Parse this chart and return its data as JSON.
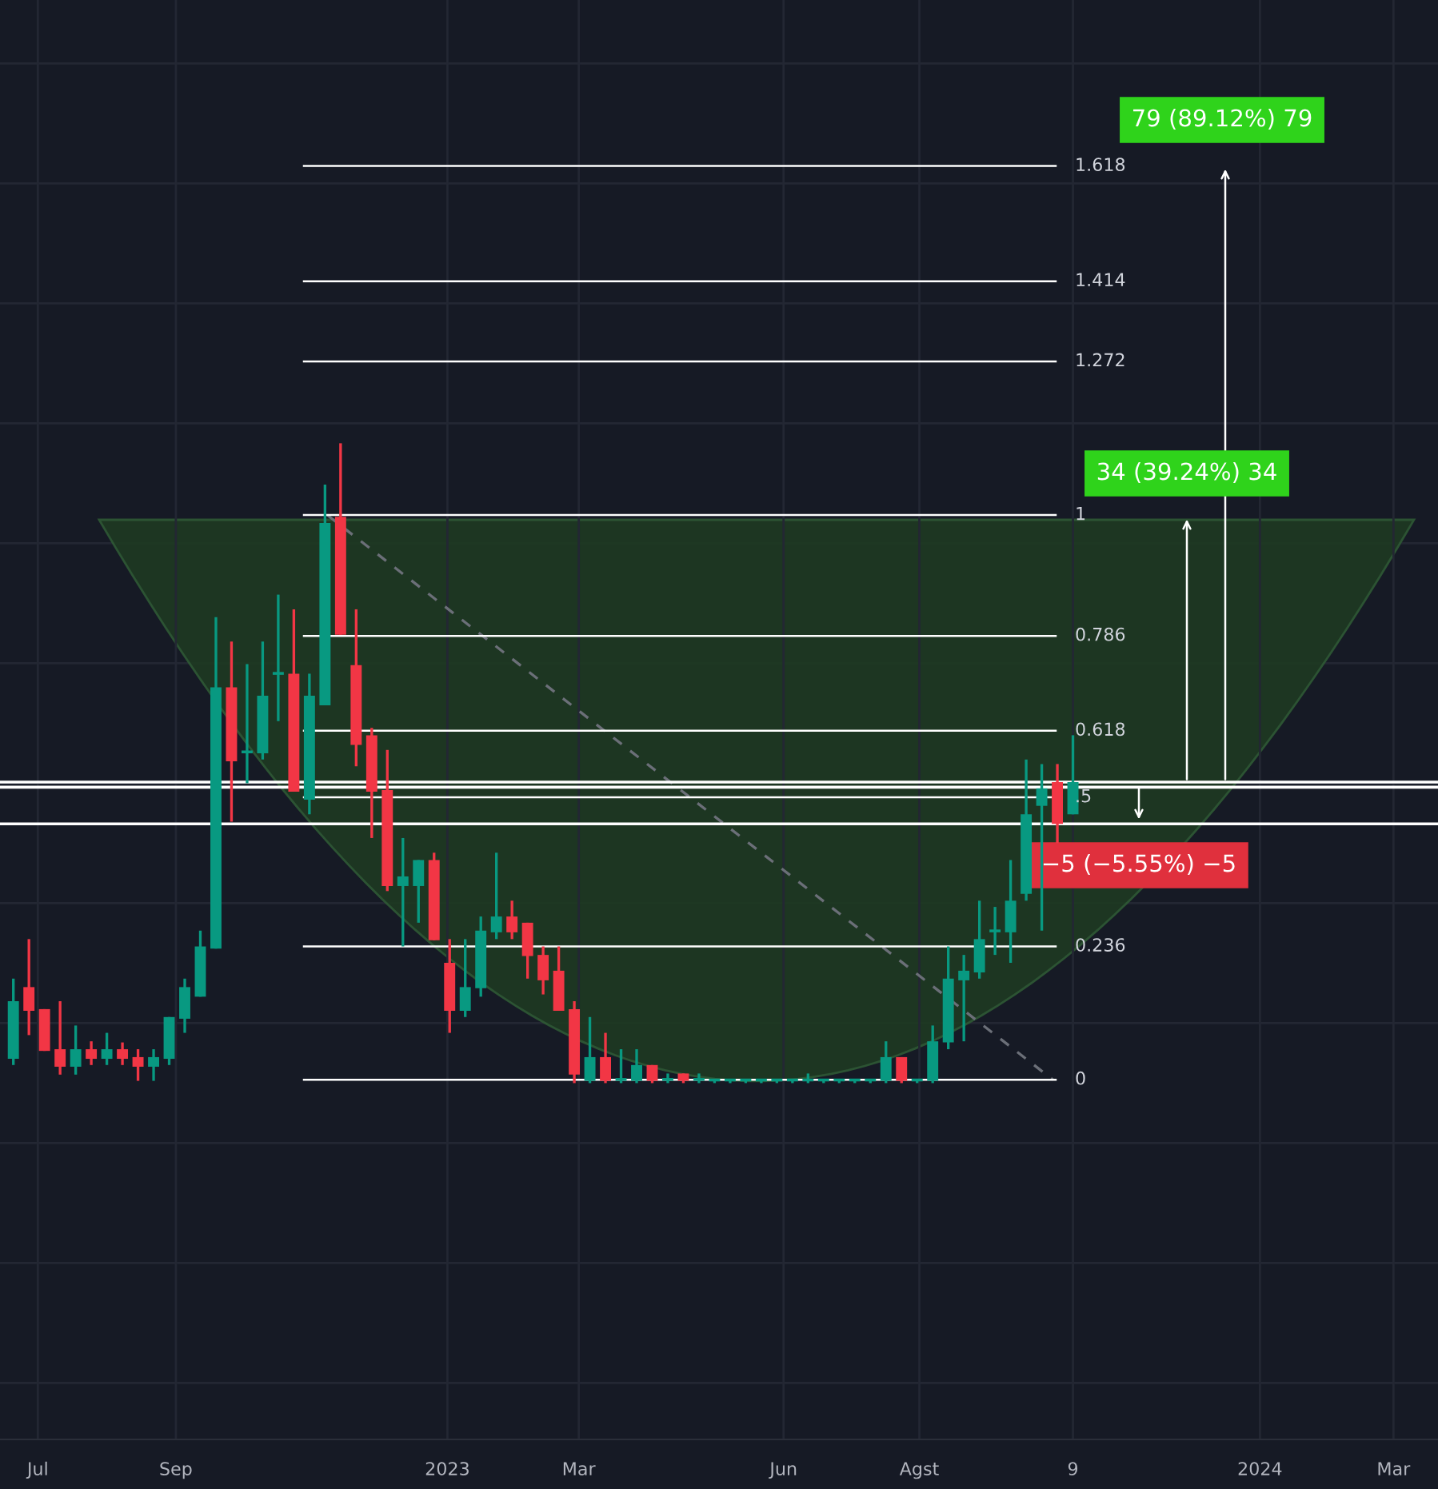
{
  "chart_data": {
    "type": "candlestick",
    "tick_labels": "x",
    "grid": true,
    "x": [
      "2022-06-20",
      "2022-06-27",
      "2022-07-04",
      "2022-07-11",
      "2022-07-18",
      "2022-07-25",
      "2022-08-01",
      "2022-08-08",
      "2022-08-15",
      "2022-08-22",
      "2022-08-29",
      "2022-09-05",
      "2022-09-12",
      "2022-09-19",
      "2022-09-26",
      "2022-10-03",
      "2022-10-10",
      "2022-10-17",
      "2022-10-24",
      "2022-10-31",
      "2022-11-07",
      "2022-11-14",
      "2022-11-21",
      "2022-11-28",
      "2022-12-05",
      "2022-12-12",
      "2022-12-19",
      "2022-12-26",
      "2023-01-02",
      "2023-01-09",
      "2023-01-16",
      "2023-01-23",
      "2023-01-30",
      "2023-02-06",
      "2023-02-13",
      "2023-02-20",
      "2023-02-27",
      "2023-03-06",
      "2023-03-13",
      "2023-03-20",
      "2023-03-27",
      "2023-04-03",
      "2023-04-10",
      "2023-04-17",
      "2023-04-24",
      "2023-05-01",
      "2023-05-08",
      "2023-05-15",
      "2023-05-22",
      "2023-05-29",
      "2023-06-05",
      "2023-06-12",
      "2023-06-19",
      "2023-06-26",
      "2023-07-03",
      "2023-07-10",
      "2023-07-17",
      "2023-07-24",
      "2023-07-31",
      "2023-08-07",
      "2023-08-14",
      "2023-08-21",
      "2023-08-28",
      "2023-09-04",
      "2023-09-11",
      "2023-09-18",
      "2023-09-25",
      "2023-10-02",
      "2023-10-09"
    ],
    "ohlc": [
      [
        0.037,
        0.179,
        0.026,
        0.139
      ],
      [
        0.164,
        0.249,
        0.079,
        0.122
      ],
      [
        0.125,
        0.125,
        0.051,
        0.051
      ],
      [
        0.054,
        0.139,
        0.009,
        0.023
      ],
      [
        0.023,
        0.096,
        0.009,
        0.054
      ],
      [
        0.054,
        0.068,
        0.026,
        0.037
      ],
      [
        0.037,
        0.083,
        0.026,
        0.054
      ],
      [
        0.054,
        0.066,
        0.026,
        0.037
      ],
      [
        0.04,
        0.054,
        -0.002,
        0.023
      ],
      [
        0.023,
        0.054,
        -0.002,
        0.04
      ],
      [
        0.037,
        0.111,
        0.026,
        0.111
      ],
      [
        0.108,
        0.179,
        0.083,
        0.164
      ],
      [
        0.147,
        0.264,
        0.147,
        0.236
      ],
      [
        0.232,
        0.819,
        0.232,
        0.695
      ],
      [
        0.695,
        0.776,
        0.457,
        0.564
      ],
      [
        0.578,
        0.736,
        0.525,
        0.581
      ],
      [
        0.578,
        0.776,
        0.567,
        0.68
      ],
      [
        0.717,
        0.859,
        0.635,
        0.719
      ],
      [
        0.719,
        0.833,
        0.51,
        0.51
      ],
      [
        0.496,
        0.719,
        0.47,
        0.68
      ],
      [
        0.663,
        1.054,
        0.663,
        0.986
      ],
      [
        0.997,
        1.127,
        0.788,
        0.788
      ],
      [
        0.734,
        0.833,
        0.555,
        0.593
      ],
      [
        0.61,
        0.623,
        0.428,
        0.51
      ],
      [
        0.513,
        0.584,
        0.334,
        0.343
      ],
      [
        0.343,
        0.428,
        0.236,
        0.36
      ],
      [
        0.343,
        0.389,
        0.278,
        0.389
      ],
      [
        0.389,
        0.402,
        0.247,
        0.247
      ],
      [
        0.207,
        0.249,
        0.083,
        0.122
      ],
      [
        0.122,
        0.249,
        0.111,
        0.164
      ],
      [
        0.162,
        0.289,
        0.147,
        0.264
      ],
      [
        0.261,
        0.402,
        0.249,
        0.289
      ],
      [
        0.289,
        0.317,
        0.249,
        0.261
      ],
      [
        0.278,
        0.278,
        0.179,
        0.219
      ],
      [
        0.221,
        0.236,
        0.151,
        0.176
      ],
      [
        0.193,
        0.236,
        0.122,
        0.122
      ],
      [
        0.125,
        0.139,
        -0.006,
        0.009
      ],
      [
        -0.002,
        0.111,
        -0.006,
        0.04
      ],
      [
        0.04,
        0.083,
        -0.006,
        -0.002
      ],
      [
        -0.002,
        0.054,
        -0.006,
        0.0
      ],
      [
        -0.002,
        0.054,
        -0.006,
        0.026
      ],
      [
        0.026,
        0.026,
        -0.006,
        -0.002
      ],
      [
        -0.002,
        0.011,
        -0.006,
        0.0
      ],
      [
        0.011,
        0.011,
        -0.006,
        -0.002
      ],
      [
        -0.002,
        0.011,
        -0.006,
        0.0
      ],
      [
        -0.003,
        0.0,
        -0.006,
        -0.002
      ],
      [
        -0.003,
        0.0,
        -0.006,
        -0.002
      ],
      [
        -0.003,
        0.0,
        -0.006,
        -0.002
      ],
      [
        -0.003,
        0.0,
        -0.006,
        -0.002
      ],
      [
        -0.003,
        0.0,
        -0.006,
        -0.002
      ],
      [
        -0.003,
        0.0,
        -0.006,
        -0.002
      ],
      [
        -0.003,
        0.011,
        -0.006,
        -0.002
      ],
      [
        -0.003,
        0.0,
        -0.006,
        -0.002
      ],
      [
        -0.003,
        0.0,
        -0.006,
        -0.002
      ],
      [
        -0.003,
        0.0,
        -0.006,
        -0.002
      ],
      [
        -0.003,
        0.0,
        -0.006,
        -0.002
      ],
      [
        -0.002,
        0.068,
        -0.006,
        0.04
      ],
      [
        0.04,
        0.04,
        -0.006,
        -0.002
      ],
      [
        -0.003,
        0.0,
        -0.006,
        -0.002
      ],
      [
        -0.002,
        0.096,
        -0.006,
        0.068
      ],
      [
        0.066,
        0.236,
        0.054,
        0.179
      ],
      [
        0.176,
        0.221,
        0.068,
        0.193
      ],
      [
        0.19,
        0.317,
        0.179,
        0.249
      ],
      [
        0.261,
        0.306,
        0.221,
        0.264
      ],
      [
        0.261,
        0.389,
        0.207,
        0.317
      ],
      [
        0.329,
        0.567,
        0.317,
        0.47
      ],
      [
        0.485,
        0.559,
        0.264,
        0.516
      ],
      [
        0.527,
        0.559,
        0.419,
        0.453
      ],
      [
        0.47,
        0.61,
        0.47,
        0.527
      ]
    ],
    "colors": [
      "#089981",
      "#f23645",
      "#f23645",
      "#f23645",
      "#089981",
      "#f23645",
      "#089981",
      "#f23645",
      "#f23645",
      "#089981",
      "#089981",
      "#089981",
      "#089981",
      "#089981",
      "#f23645",
      "#089981",
      "#089981",
      "#089981",
      "#f23645",
      "#089981",
      "#089981",
      "#f23645",
      "#f23645",
      "#f23645",
      "#f23645",
      "#089981",
      "#089981",
      "#f23645",
      "#f23645",
      "#089981",
      "#089981",
      "#089981",
      "#f23645",
      "#f23645",
      "#f23645",
      "#f23645",
      "#f23645",
      "#089981",
      "#f23645",
      "#089981",
      "#089981",
      "#f23645",
      "#089981",
      "#f23645",
      "#089981",
      "#089981",
      "#089981",
      "#089981",
      "#089981",
      "#089981",
      "#089981",
      "#089981",
      "#089981",
      "#089981",
      "#089981",
      "#089981",
      "#089981",
      "#f23645",
      "#089981",
      "#089981",
      "#089981",
      "#089981",
      "#089981",
      "#089981",
      "#089981",
      "#089981",
      "#089981",
      "#f23645",
      "#089981"
    ],
    "series": [
      {
        "type": "line",
        "x": [
          "2022-11-08",
          "2023-09-30"
        ],
        "values": [
          1,
          0
        ],
        "color": "#6b6f78",
        "line_style": "dashed"
      }
    ],
    "xlim": [
      "2022-06-14",
      "2024-03-21"
    ],
    "ylim": [
      -0.637,
      1.912
    ],
    "xticks": [
      {
        "value": "2022-07-01",
        "label": "Jul"
      },
      {
        "value": "2022-09-01",
        "label": "Sep"
      },
      {
        "value": "2023-01-01",
        "label": "2023"
      },
      {
        "value": "2023-03-01",
        "label": "Mar"
      },
      {
        "value": "2023-06-01",
        "label": "Jun"
      },
      {
        "value": "2023-08-01",
        "label": "Agst"
      },
      {
        "value": "2023-10-09",
        "label": "9"
      },
      {
        "value": "2024-01-01",
        "label": "2024"
      },
      {
        "value": "2024-03-01",
        "label": "Mar"
      }
    ],
    "ref_lines": [
      {
        "axis": "y",
        "value": 0,
        "label": "0",
        "color": "#ffffff"
      },
      {
        "axis": "y",
        "value": 0.236,
        "label": "0.236",
        "color": "#ffffff"
      },
      {
        "axis": "y",
        "value": 0.5,
        "label": ".5",
        "color": "#ffffff"
      },
      {
        "axis": "y",
        "value": 0.618,
        "label": "0.618",
        "color": "#ffffff"
      },
      {
        "axis": "y",
        "value": 0.786,
        "label": "0.786",
        "color": "#ffffff"
      },
      {
        "axis": "y",
        "value": 1,
        "label": "1",
        "color": "#ffffff"
      },
      {
        "axis": "y",
        "value": 1.272,
        "label": "1.272",
        "color": "#ffffff"
      },
      {
        "axis": "y",
        "value": 1.414,
        "label": "1.414",
        "color": "#ffffff"
      },
      {
        "axis": "y",
        "value": 1.618,
        "label": "1.618",
        "color": "#ffffff"
      },
      {
        "axis": "y",
        "value": 0.527,
        "label": null,
        "color": "#ffffff"
      },
      {
        "axis": "y",
        "value": 0.518,
        "label": null,
        "color": "#ffffff"
      },
      {
        "axis": "y",
        "value": 0.453,
        "label": null,
        "color": "#ffffff"
      }
    ],
    "annotations": [
      "79 (89.12%) 79",
      "34 (39.24%) 34",
      "−5 (−5.55%) −5"
    ]
  }
}
